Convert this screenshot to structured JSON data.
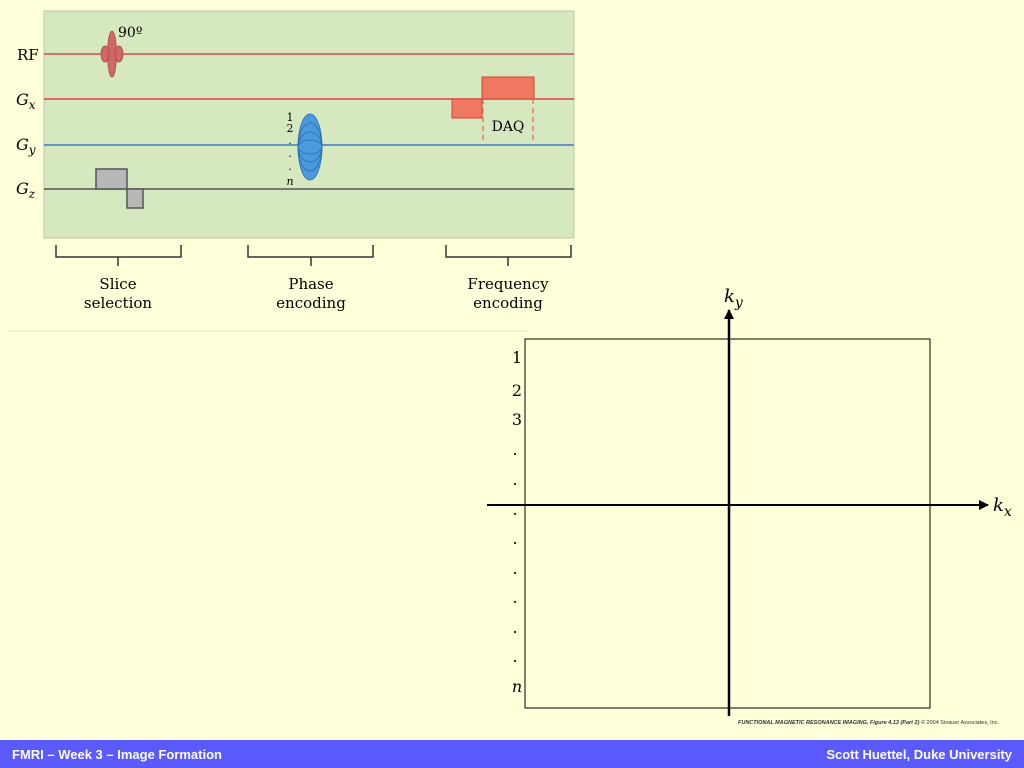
{
  "pulse_sequence": {
    "rf_label": "RF",
    "gx_main": "G",
    "gx_sub": "x",
    "gy_main": "G",
    "gy_sub": "y",
    "gz_main": "G",
    "gz_sub": "z",
    "flip_angle": "90º",
    "daq_label": "DAQ",
    "phase_steps": [
      "1",
      "2",
      ".",
      ".",
      ".",
      "n"
    ],
    "stages": [
      {
        "line1": "Slice",
        "line2": "selection"
      },
      {
        "line1": "Phase",
        "line2": "encoding"
      },
      {
        "line1": "Frequency",
        "line2": "encoding"
      }
    ],
    "colors": {
      "panel": "#d6e8c0",
      "rf": "#d05050",
      "gx": "#e84040",
      "gy": "#3a7ac8",
      "gz": "#555555",
      "gz_lobe": "#b8b8b8",
      "gx_lobe": "#f07860",
      "phase_lobe": "#4a9ae0",
      "rf_pulse": "#d06868"
    }
  },
  "kspace": {
    "x_main": "k",
    "x_sub": "x",
    "y_main": "k",
    "y_sub": "y",
    "row_labels": [
      "1",
      "2",
      "3",
      ".",
      ".",
      ".",
      ".",
      ".",
      ".",
      ".",
      ".",
      "n"
    ]
  },
  "credit": {
    "book": "FUNCTIONAL MAGNETIC RESONANCE IMAGING,",
    "fig": " Figure 4.13 (Part 2) ",
    "rights": "© 2004 Sinauer Associates, Inc."
  },
  "footer": {
    "left": "FMRI – Week 3 – Image Formation",
    "right": "Scott Huettel, Duke University"
  }
}
